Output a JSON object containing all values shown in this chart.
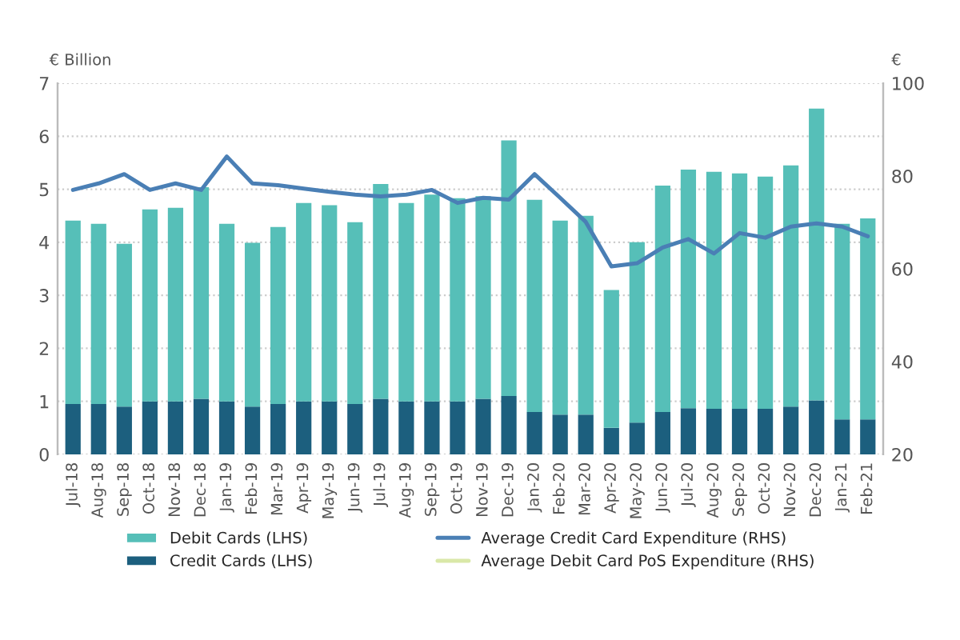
{
  "chart_data": {
    "type": "bar",
    "stacked": true,
    "ylabel": "€ Billion",
    "y2label": "€",
    "categories": [
      "Jul-18",
      "Aug-18",
      "Sep-18",
      "Oct-18",
      "Nov-18",
      "Dec-18",
      "Jan-19",
      "Feb-19",
      "Mar-19",
      "Apr-19",
      "May-19",
      "Jun-19",
      "Jul-19",
      "Aug-19",
      "Sep-19",
      "Oct-19",
      "Nov-19",
      "Dec-19",
      "Jan-20",
      "Feb-20",
      "Mar-20",
      "Apr-20",
      "May-20",
      "Jun-20",
      "Jul-20",
      "Aug-20",
      "Sep-20",
      "Oct-20",
      "Nov-20",
      "Dec-20",
      "Jan-21",
      "Feb-21"
    ],
    "series": [
      {
        "name": "Credit Cards (LHS)",
        "color": "#1c5f7e",
        "values": [
          0.95,
          0.95,
          0.9,
          1.0,
          1.0,
          1.05,
          1.0,
          0.9,
          0.95,
          1.0,
          1.0,
          0.95,
          1.05,
          1.0,
          1.0,
          1.0,
          1.05,
          1.1,
          0.8,
          0.75,
          0.75,
          0.5,
          0.6,
          0.8,
          0.87,
          0.86,
          0.86,
          0.86,
          0.9,
          1.02,
          0.66,
          0.66
        ]
      },
      {
        "name": "Debit Cards (LHS)",
        "color": "#56bfb8",
        "values": [
          3.46,
          3.4,
          3.07,
          3.62,
          3.65,
          3.99,
          3.35,
          3.09,
          3.34,
          3.74,
          3.7,
          3.43,
          4.05,
          3.74,
          3.9,
          3.83,
          3.82,
          4.82,
          4.0,
          3.66,
          3.75,
          2.6,
          3.4,
          4.27,
          4.5,
          4.47,
          4.44,
          4.38,
          4.55,
          5.5,
          3.69,
          3.79
        ]
      },
      {
        "name": "Average Credit Card Expenditure (RHS)",
        "type": "line",
        "axis": "y2",
        "color": "#4a7fb5",
        "values": [
          77,
          78.4,
          80.4,
          77,
          78.4,
          77,
          84.2,
          78.4,
          78,
          77.3,
          76.6,
          76,
          75.6,
          76,
          77,
          74.2,
          75.3,
          74.9,
          80.4,
          75.3,
          70.1,
          60.5,
          61.2,
          64.6,
          66.4,
          63.3,
          67.7,
          66.7,
          69.1,
          69.8,
          69.1,
          67
        ]
      },
      {
        "name": "Average Debit Card PoS Expenditure (RHS)",
        "type": "line",
        "axis": "y2",
        "color": "#d9e8a8",
        "values": [
          null,
          null,
          null,
          null,
          null,
          null,
          null,
          null,
          null,
          null,
          null,
          null,
          null,
          null,
          null,
          null,
          null,
          null,
          null,
          null,
          null,
          null,
          null,
          null,
          null,
          null,
          null,
          null,
          null,
          null,
          null,
          null
        ]
      }
    ],
    "ylim": [
      0,
      7
    ],
    "yticks": [
      0,
      1,
      2,
      3,
      4,
      5,
      6,
      7
    ],
    "y2lim": [
      20,
      100
    ],
    "y2ticks": [
      20,
      40,
      60,
      80,
      100
    ],
    "grid": "y",
    "legend": "bottom"
  }
}
